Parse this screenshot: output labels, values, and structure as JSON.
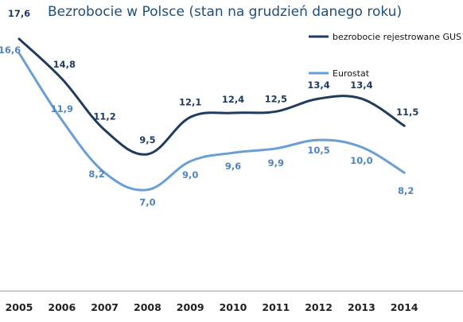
{
  "chart_data": {
    "type": "line",
    "title": "Bezrobocie w Polsce (stan na grudzień danego roku)",
    "xlabel": "",
    "ylabel": "",
    "categories": [
      "2005",
      "2006",
      "2007",
      "2008",
      "2009",
      "2010",
      "2011",
      "2012",
      "2013",
      "2014"
    ],
    "ylim": [
      0,
      18
    ],
    "grid": false,
    "legend_position": "top-right",
    "series": [
      {
        "name": "bezrobocie rejestrowane GUS",
        "color": "#1f3b5e",
        "values": [
          17.6,
          14.8,
          11.2,
          9.5,
          12.1,
          12.4,
          12.5,
          13.4,
          13.4,
          11.5
        ],
        "labels": [
          "17,6",
          "14,8",
          "11,2",
          "9,5",
          "12,1",
          "12,4",
          "12,5",
          "13,4",
          "13,4",
          "11,5"
        ]
      },
      {
        "name": "Eurostat",
        "color": "#6a9fd4",
        "values": [
          16.6,
          11.9,
          8.2,
          7.0,
          9.0,
          9.6,
          9.9,
          10.5,
          10.0,
          8.2
        ],
        "labels": [
          "16,6",
          "11,9",
          "8,2",
          "7,0",
          "9,0",
          "9,6",
          "9,9",
          "10,5",
          "10,0",
          "8,2"
        ]
      }
    ]
  }
}
